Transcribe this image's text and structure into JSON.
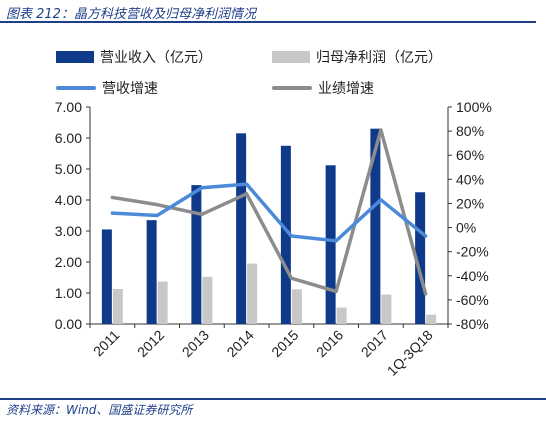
{
  "caption": "图表 212：晶方科技营收及归母净利润情况",
  "source": "资料来源：Wind、国盛证券研究所",
  "chart_data": {
    "type": "bar",
    "categories": [
      "2011",
      "2012",
      "2013",
      "2014",
      "2015",
      "2016",
      "2017",
      "1Q-3Q18"
    ],
    "series": [
      {
        "name": "营业收入（亿元）",
        "kind": "bar",
        "axis": "left",
        "color": "#0f3a8a",
        "values": [
          3.05,
          3.35,
          4.48,
          6.15,
          5.75,
          5.12,
          6.3,
          4.25
        ]
      },
      {
        "name": "归母净利润（亿元）",
        "kind": "bar",
        "axis": "left",
        "color": "#c8c8c8",
        "values": [
          1.13,
          1.37,
          1.52,
          1.95,
          1.12,
          0.53,
          0.95,
          0.3
        ]
      },
      {
        "name": "营收增速",
        "kind": "line",
        "axis": "right",
        "color": "#4a8ad8",
        "values": [
          12,
          10,
          33,
          36,
          -7,
          -11,
          23,
          -7
        ]
      },
      {
        "name": "业绩增速",
        "kind": "line",
        "axis": "right",
        "color": "#8c8c8c",
        "values": [
          25,
          19,
          11,
          28,
          -42,
          -53,
          81,
          -55
        ]
      }
    ],
    "y_left": {
      "min": 0,
      "max": 7,
      "step": 1,
      "ticks": [
        "0.00",
        "1.00",
        "2.00",
        "3.00",
        "4.00",
        "5.00",
        "6.00",
        "7.00"
      ]
    },
    "y_right": {
      "min": -80,
      "max": 100,
      "step": 20,
      "ticks": [
        "-80%",
        "-60%",
        "-40%",
        "-20%",
        "0%",
        "20%",
        "40%",
        "60%",
        "80%",
        "100%"
      ]
    },
    "grid": false,
    "legend_position": "top"
  }
}
